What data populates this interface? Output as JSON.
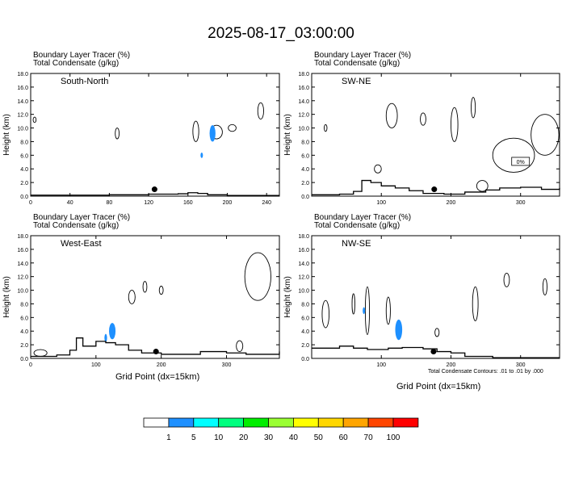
{
  "title": "2025-08-17_03:00:00",
  "field_label": "Boundary Layer Tracer   (%)",
  "contour_label": "Total Condensate   (g/kg)",
  "ylabel": "Height (km)",
  "xlabel": "Grid Point (dx=15km)",
  "contour_note": "Total Condensate Contours: .01 to .01 by .000",
  "colors": {
    "tracer_fill": "#1e90ff",
    "terrain": "#000000",
    "contour": "#000000"
  },
  "colorbar": {
    "colors": [
      "#ffffff",
      "#1e90ff",
      "#00ffff",
      "#00ff7f",
      "#00ee00",
      "#9aff32",
      "#ffff00",
      "#ffd700",
      "#ffa500",
      "#ff4500",
      "#ff0000"
    ],
    "labels": [
      "1",
      "5",
      "10",
      "20",
      "30",
      "40",
      "50",
      "60",
      "70",
      "100"
    ]
  },
  "chart_data": [
    {
      "type": "contour",
      "title": "South-North",
      "xlim": [
        0,
        253
      ],
      "ylim": [
        0,
        18
      ],
      "xticks": [
        0,
        40,
        80,
        120,
        160,
        200,
        240
      ],
      "yticks": [
        "0.0",
        "2.0",
        "4.0",
        "6.0",
        "8.0",
        "10.0",
        "12.0",
        "14.0",
        "16.0",
        "18.0"
      ],
      "terrain": [
        [
          0,
          0.15
        ],
        [
          40,
          0.15
        ],
        [
          80,
          0.2
        ],
        [
          120,
          0.3
        ],
        [
          150,
          0.35
        ],
        [
          160,
          0.5
        ],
        [
          170,
          0.4
        ],
        [
          180,
          0.2
        ],
        [
          200,
          0.1
        ],
        [
          253,
          0.1
        ]
      ],
      "point": [
        126,
        1.0
      ],
      "tracer_blobs": [
        [
          185,
          9.2,
          3,
          1.2
        ],
        [
          174,
          6.0,
          1.2,
          0.4
        ]
      ],
      "condensate": [
        [
          88,
          9.2,
          2,
          0.8
        ],
        [
          168,
          9.5,
          3,
          1.5
        ],
        [
          189,
          9.4,
          6,
          1.0
        ],
        [
          205,
          10.0,
          4,
          0.5
        ],
        [
          234,
          12.5,
          3,
          1.2
        ],
        [
          4,
          11.2,
          1.5,
          0.4
        ]
      ]
    },
    {
      "type": "contour",
      "title": "SW-NE",
      "xlim": [
        0,
        356
      ],
      "ylim": [
        0,
        18
      ],
      "xticks": [
        100,
        200,
        300
      ],
      "yticks": [
        "0.0",
        "2.0",
        "4.0",
        "6.0",
        "8.0",
        "10.0",
        "12.0",
        "14.0",
        "16.0",
        "18.0"
      ],
      "terrain": [
        [
          0,
          0.2
        ],
        [
          40,
          0.3
        ],
        [
          60,
          0.7
        ],
        [
          72,
          2.3
        ],
        [
          85,
          2.0
        ],
        [
          100,
          1.5
        ],
        [
          120,
          1.2
        ],
        [
          140,
          0.8
        ],
        [
          160,
          0.4
        ],
        [
          190,
          0.3
        ],
        [
          220,
          0.6
        ],
        [
          250,
          0.9
        ],
        [
          270,
          1.2
        ],
        [
          300,
          1.3
        ],
        [
          330,
          1.0
        ],
        [
          356,
          1.2
        ]
      ],
      "point": [
        176,
        1.0
      ],
      "tracer_blobs": [],
      "condensate": [
        [
          115,
          11.8,
          8,
          1.8
        ],
        [
          160,
          11.3,
          4,
          0.9
        ],
        [
          205,
          10.5,
          5,
          2.5
        ],
        [
          232,
          13.0,
          3,
          1.5
        ],
        [
          335,
          9.0,
          20,
          3.0
        ],
        [
          290,
          6.0,
          30,
          2.5
        ],
        [
          95,
          4.0,
          5,
          0.6
        ],
        [
          20,
          10.0,
          2,
          0.5
        ],
        [
          245,
          1.5,
          8,
          0.8
        ]
      ],
      "annotation": "0%"
    },
    {
      "type": "contour",
      "title": "West-East",
      "xlim": [
        0,
        381
      ],
      "ylim": [
        0,
        18
      ],
      "xticks": [
        0,
        100,
        200,
        300
      ],
      "yticks": [
        "0.0",
        "2.0",
        "4.0",
        "6.0",
        "8.0",
        "10.0",
        "12.0",
        "14.0",
        "16.0",
        "18.0"
      ],
      "terrain": [
        [
          0,
          0.3
        ],
        [
          40,
          0.5
        ],
        [
          60,
          1.2
        ],
        [
          70,
          3.0
        ],
        [
          80,
          1.8
        ],
        [
          100,
          2.5
        ],
        [
          115,
          2.3
        ],
        [
          130,
          2.0
        ],
        [
          150,
          1.2
        ],
        [
          170,
          0.8
        ],
        [
          200,
          0.6
        ],
        [
          240,
          0.6
        ],
        [
          260,
          1.0
        ],
        [
          300,
          0.8
        ],
        [
          330,
          0.6
        ],
        [
          381,
          1.0
        ]
      ],
      "point": [
        192,
        1.0
      ],
      "tracer_blobs": [
        [
          125,
          4.0,
          5,
          1.2
        ],
        [
          115,
          3.0,
          2,
          0.6
        ]
      ],
      "condensate": [
        [
          155,
          9.0,
          5,
          1.0
        ],
        [
          175,
          10.5,
          3,
          0.8
        ],
        [
          200,
          10.0,
          3,
          0.6
        ],
        [
          348,
          12.0,
          20,
          3.5
        ],
        [
          15,
          0.8,
          10,
          0.5
        ],
        [
          320,
          1.8,
          5,
          0.8
        ]
      ]
    },
    {
      "type": "contour",
      "title": "NW-SE",
      "xlim": [
        0,
        356
      ],
      "ylim": [
        0,
        18
      ],
      "xticks": [
        100,
        200,
        300
      ],
      "yticks": [
        "0.0",
        "2.0",
        "4.0",
        "6.0",
        "8.0",
        "10.0",
        "12.0",
        "14.0",
        "16.0",
        "18.0"
      ],
      "terrain": [
        [
          0,
          1.5
        ],
        [
          40,
          1.8
        ],
        [
          60,
          1.5
        ],
        [
          80,
          1.3
        ],
        [
          110,
          1.5
        ],
        [
          130,
          1.6
        ],
        [
          160,
          1.4
        ],
        [
          180,
          1.0
        ],
        [
          200,
          0.8
        ],
        [
          220,
          0.3
        ],
        [
          260,
          0.1
        ],
        [
          356,
          0.1
        ]
      ],
      "point": [
        175,
        1.0
      ],
      "tracer_blobs": [
        [
          125,
          4.2,
          5,
          1.5
        ],
        [
          75,
          7.0,
          1.5,
          0.5
        ]
      ],
      "condensate": [
        [
          80,
          7.0,
          3,
          3.5
        ],
        [
          110,
          7.0,
          3,
          2.0
        ],
        [
          20,
          6.5,
          5,
          2.0
        ],
        [
          60,
          8.0,
          2,
          1.5
        ],
        [
          235,
          8.0,
          4,
          2.5
        ],
        [
          280,
          11.5,
          4,
          1.0
        ],
        [
          335,
          10.5,
          3,
          1.2
        ],
        [
          180,
          3.8,
          3,
          0.6
        ]
      ]
    }
  ]
}
